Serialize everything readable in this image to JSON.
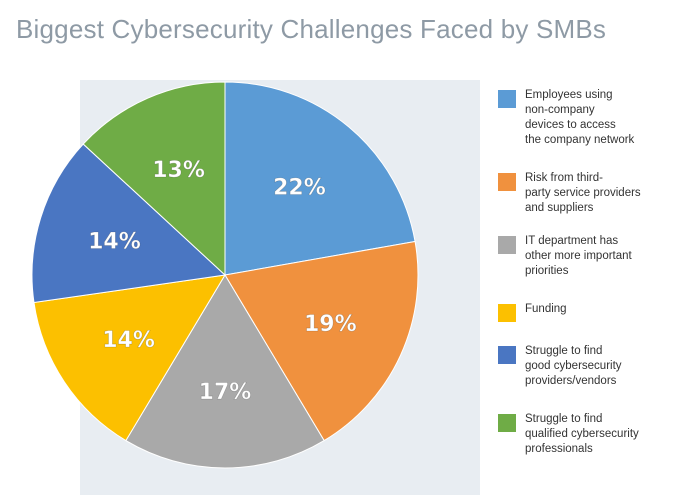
{
  "title": "Biggest Cybersecurity Challenges Faced by SMBs",
  "chart_data": {
    "type": "pie",
    "title": "Biggest Cybersecurity Challenges Faced by SMBs",
    "slices": [
      {
        "label": "Employees using\nnon-company\ndevices to access\nthe company network",
        "value": 22,
        "display": "22%",
        "color": "#5b9bd5"
      },
      {
        "label": "Risk from third-\nparty service providers\nand suppliers",
        "value": 19,
        "display": "19%",
        "color": "#f0913e"
      },
      {
        "label": "IT department has\nother more important\npriorities",
        "value": 17,
        "display": "17%",
        "color": "#a9a9a9"
      },
      {
        "label": "Funding",
        "value": 14,
        "display": "14%",
        "color": "#fcc000"
      },
      {
        "label": "Struggle to find\ngood  cybersecurity\nproviders/vendors",
        "value": 14,
        "display": "14%",
        "color": "#4a76c2"
      },
      {
        "label": "Struggle to find\nqualified cybersecurity\nprofessionals",
        "value": 13,
        "display": "13%",
        "color": "#6fac46"
      }
    ],
    "legend_position": "right"
  }
}
